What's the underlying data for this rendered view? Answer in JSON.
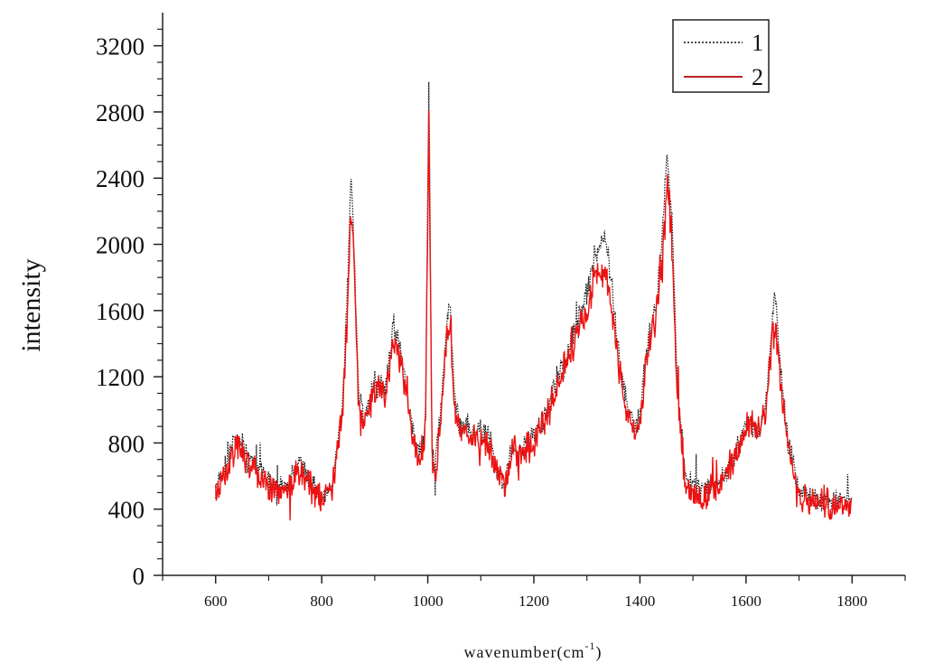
{
  "chart_data": {
    "type": "line",
    "xlabel": "wavenumber(cm",
    "xlabel_sup": "-1",
    "xlabel_close": ")",
    "ylabel": "intensity",
    "xlim": [
      500,
      1900
    ],
    "ylim": [
      0,
      3400
    ],
    "x_ticks": [
      "600",
      "800",
      "1000",
      "1200",
      "1400",
      "1600",
      "1800"
    ],
    "y_ticks": [
      "0",
      "400",
      "800",
      "1200",
      "1600",
      "2000",
      "2400",
      "2800",
      "3200"
    ],
    "legend_position": "top-right",
    "series": [
      {
        "name": "1",
        "color": "#111111",
        "style": "dotted",
        "x": [
          600,
          620,
          640,
          660,
          680,
          700,
          720,
          740,
          760,
          780,
          800,
          820,
          840,
          850,
          855,
          860,
          870,
          880,
          900,
          920,
          935,
          950,
          960,
          970,
          980,
          990,
          996,
          1002,
          1008,
          1015,
          1025,
          1035,
          1042,
          1050,
          1060,
          1075,
          1090,
          1110,
          1130,
          1145,
          1160,
          1180,
          1200,
          1220,
          1240,
          1260,
          1280,
          1300,
          1315,
          1325,
          1335,
          1345,
          1360,
          1375,
          1390,
          1400,
          1415,
          1430,
          1440,
          1450,
          1460,
          1470,
          1485,
          1500,
          1520,
          1540,
          1560,
          1580,
          1600,
          1610,
          1625,
          1640,
          1650,
          1655,
          1665,
          1680,
          1700,
          1720,
          1740,
          1760,
          1780,
          1800
        ],
        "y": [
          520,
          680,
          850,
          720,
          650,
          560,
          520,
          570,
          700,
          560,
          470,
          560,
          1050,
          1850,
          2450,
          2050,
          1100,
          940,
          1180,
          1120,
          1520,
          1340,
          1120,
          930,
          760,
          700,
          1020,
          3020,
          760,
          680,
          1030,
          1500,
          1600,
          1080,
          890,
          920,
          850,
          880,
          650,
          560,
          780,
          760,
          860,
          960,
          1150,
          1320,
          1520,
          1700,
          1900,
          1960,
          2050,
          1800,
          1350,
          1050,
          880,
          960,
          1420,
          1640,
          1960,
          2550,
          2200,
          1200,
          600,
          540,
          500,
          540,
          610,
          740,
          910,
          920,
          880,
          1100,
          1550,
          1710,
          1250,
          800,
          530,
          470,
          470,
          450,
          450,
          440
        ]
      },
      {
        "name": "2",
        "color": "#ee1111",
        "style": "solid",
        "x": [
          600,
          620,
          640,
          660,
          680,
          700,
          720,
          740,
          760,
          780,
          800,
          820,
          840,
          850,
          855,
          860,
          870,
          880,
          900,
          920,
          935,
          950,
          960,
          970,
          980,
          990,
          996,
          1002,
          1008,
          1015,
          1025,
          1035,
          1042,
          1050,
          1060,
          1075,
          1090,
          1110,
          1130,
          1145,
          1160,
          1180,
          1200,
          1220,
          1240,
          1260,
          1280,
          1300,
          1315,
          1325,
          1335,
          1345,
          1360,
          1375,
          1390,
          1400,
          1415,
          1430,
          1440,
          1450,
          1460,
          1470,
          1485,
          1500,
          1520,
          1540,
          1560,
          1580,
          1600,
          1610,
          1625,
          1640,
          1650,
          1655,
          1665,
          1680,
          1700,
          1720,
          1740,
          1760,
          1780,
          1800
        ],
        "y": [
          500,
          640,
          800,
          690,
          620,
          540,
          500,
          540,
          650,
          530,
          450,
          530,
          980,
          1700,
          2250,
          1900,
          1020,
          900,
          1120,
          1080,
          1450,
          1280,
          1060,
          880,
          720,
          660,
          960,
          2780,
          720,
          640,
          980,
          1420,
          1500,
          1020,
          850,
          880,
          820,
          840,
          620,
          540,
          750,
          730,
          820,
          920,
          1100,
          1270,
          1450,
          1620,
          1800,
          1840,
          1830,
          1680,
          1270,
          990,
          840,
          920,
          1360,
          1560,
          1860,
          2300,
          2100,
          1150,
          570,
          510,
          470,
          520,
          590,
          710,
          880,
          890,
          850,
          1060,
          1460,
          1520,
          1180,
          760,
          500,
          440,
          450,
          430,
          430,
          430
        ]
      }
    ]
  }
}
